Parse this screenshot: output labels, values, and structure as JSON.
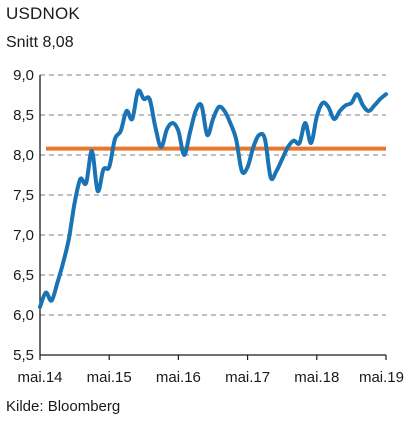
{
  "chart_data": {
    "type": "line",
    "title": "USDNOK",
    "subtitle": "Snitt 8,08",
    "source": "Kilde: Bloomberg",
    "xlabel": "",
    "ylabel": "",
    "ylim": [
      5.5,
      9.0
    ],
    "xlim": [
      "2014-05",
      "2019-05"
    ],
    "yticks": [
      "5,5",
      "6,0",
      "6,5",
      "7,0",
      "7,5",
      "8,0",
      "8,5",
      "9,0"
    ],
    "xticks": [
      "mai.14",
      "mai.15",
      "mai.16",
      "mai.17",
      "mai.18",
      "mai.19"
    ],
    "grid": "horizontal dashed",
    "colors": {
      "series": "#1a73b5",
      "average": "#e8762b",
      "grid": "#9a9a9a",
      "axis": "#1a1a1a"
    },
    "average": {
      "value": 8.08
    },
    "series": [
      {
        "x": [
          "2014-05",
          "2014-06",
          "2014-07",
          "2014-08",
          "2014-09",
          "2014-10",
          "2014-11",
          "2014-12",
          "2015-01",
          "2015-02",
          "2015-03",
          "2015-04",
          "2015-05",
          "2015-06",
          "2015-07",
          "2015-08",
          "2015-09",
          "2015-10",
          "2015-11",
          "2015-12",
          "2016-01",
          "2016-02",
          "2016-03",
          "2016-04",
          "2016-05",
          "2016-06",
          "2016-07",
          "2016-08",
          "2016-09",
          "2016-10",
          "2016-11",
          "2016-12",
          "2017-01",
          "2017-02",
          "2017-03",
          "2017-04",
          "2017-05",
          "2017-06",
          "2017-07",
          "2017-08",
          "2017-09",
          "2017-10",
          "2017-11",
          "2017-12",
          "2018-01",
          "2018-02",
          "2018-03",
          "2018-04",
          "2018-05",
          "2018-06",
          "2018-07",
          "2018-08",
          "2018-09",
          "2018-10",
          "2018-11",
          "2018-12",
          "2019-01",
          "2019-02",
          "2019-03",
          "2019-04",
          "2019-05"
        ],
        "values": [
          6.1,
          6.28,
          6.18,
          6.4,
          6.65,
          6.95,
          7.4,
          7.7,
          7.65,
          8.05,
          7.55,
          7.82,
          7.85,
          8.2,
          8.3,
          8.55,
          8.45,
          8.8,
          8.7,
          8.7,
          8.35,
          8.1,
          8.32,
          8.4,
          8.3,
          8.0,
          8.28,
          8.55,
          8.62,
          8.25,
          8.45,
          8.6,
          8.55,
          8.4,
          8.2,
          7.8,
          7.85,
          8.1,
          8.25,
          8.2,
          7.72,
          7.8,
          7.95,
          8.1,
          8.18,
          8.15,
          8.4,
          8.15,
          8.48,
          8.65,
          8.6,
          8.45,
          8.55,
          8.62,
          8.65,
          8.76,
          8.62,
          8.55,
          8.62,
          8.7,
          8.76
        ]
      }
    ]
  }
}
